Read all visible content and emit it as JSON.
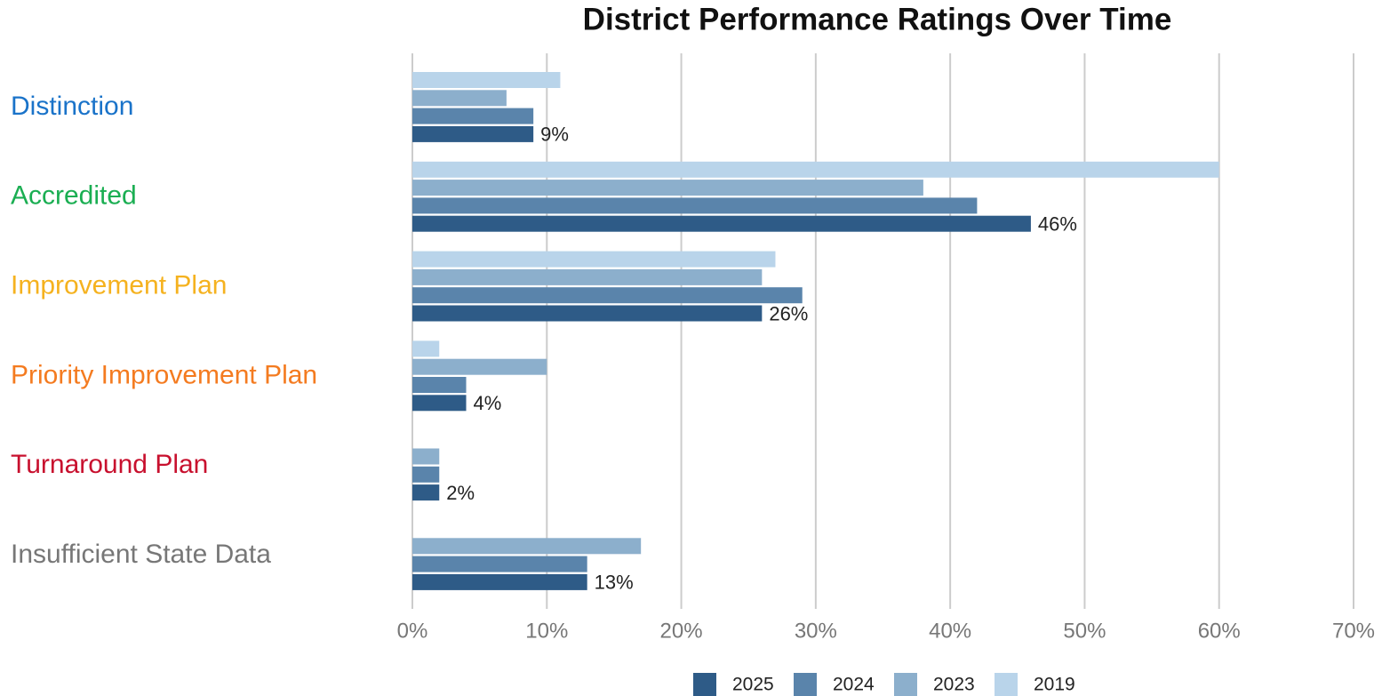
{
  "chart_data": {
    "type": "hbar",
    "title": "District Performance Ratings Over Time",
    "categories": [
      "Distinction",
      "Accredited",
      "Improvement Plan",
      "Priority Improvement Plan",
      "Turnaround Plan",
      "Insufficient State Data"
    ],
    "category_colors": [
      "#1a73c9",
      "#1aae52",
      "#f5b21f",
      "#f47b20",
      "#c8102e",
      "#777777"
    ],
    "series": [
      {
        "name": "2025",
        "color": "#2e5b87",
        "values": [
          9,
          46,
          26,
          4,
          2,
          13
        ],
        "value_labels": [
          "9%",
          "46%",
          "26%",
          "4%",
          "2%",
          "13%"
        ]
      },
      {
        "name": "2024",
        "color": "#5a84ab",
        "values": [
          9,
          42,
          29,
          4,
          2,
          13
        ]
      },
      {
        "name": "2023",
        "color": "#8cafcc",
        "values": [
          7,
          38,
          26,
          10,
          2,
          17
        ]
      },
      {
        "name": "2019",
        "color": "#b9d4ea",
        "values": [
          11,
          60,
          27,
          2,
          null,
          null
        ]
      }
    ],
    "xlim": [
      0,
      70
    ],
    "xticks": [
      {
        "value": 0,
        "label": "0%"
      },
      {
        "value": 10,
        "label": "10%"
      },
      {
        "value": 20,
        "label": "20%"
      },
      {
        "value": 30,
        "label": "30%"
      },
      {
        "value": 40,
        "label": "40%"
      },
      {
        "value": 50,
        "label": "50%"
      },
      {
        "value": 60,
        "label": "60%"
      },
      {
        "value": 70,
        "label": "70%"
      }
    ],
    "grid": true,
    "legend": "bottom"
  }
}
